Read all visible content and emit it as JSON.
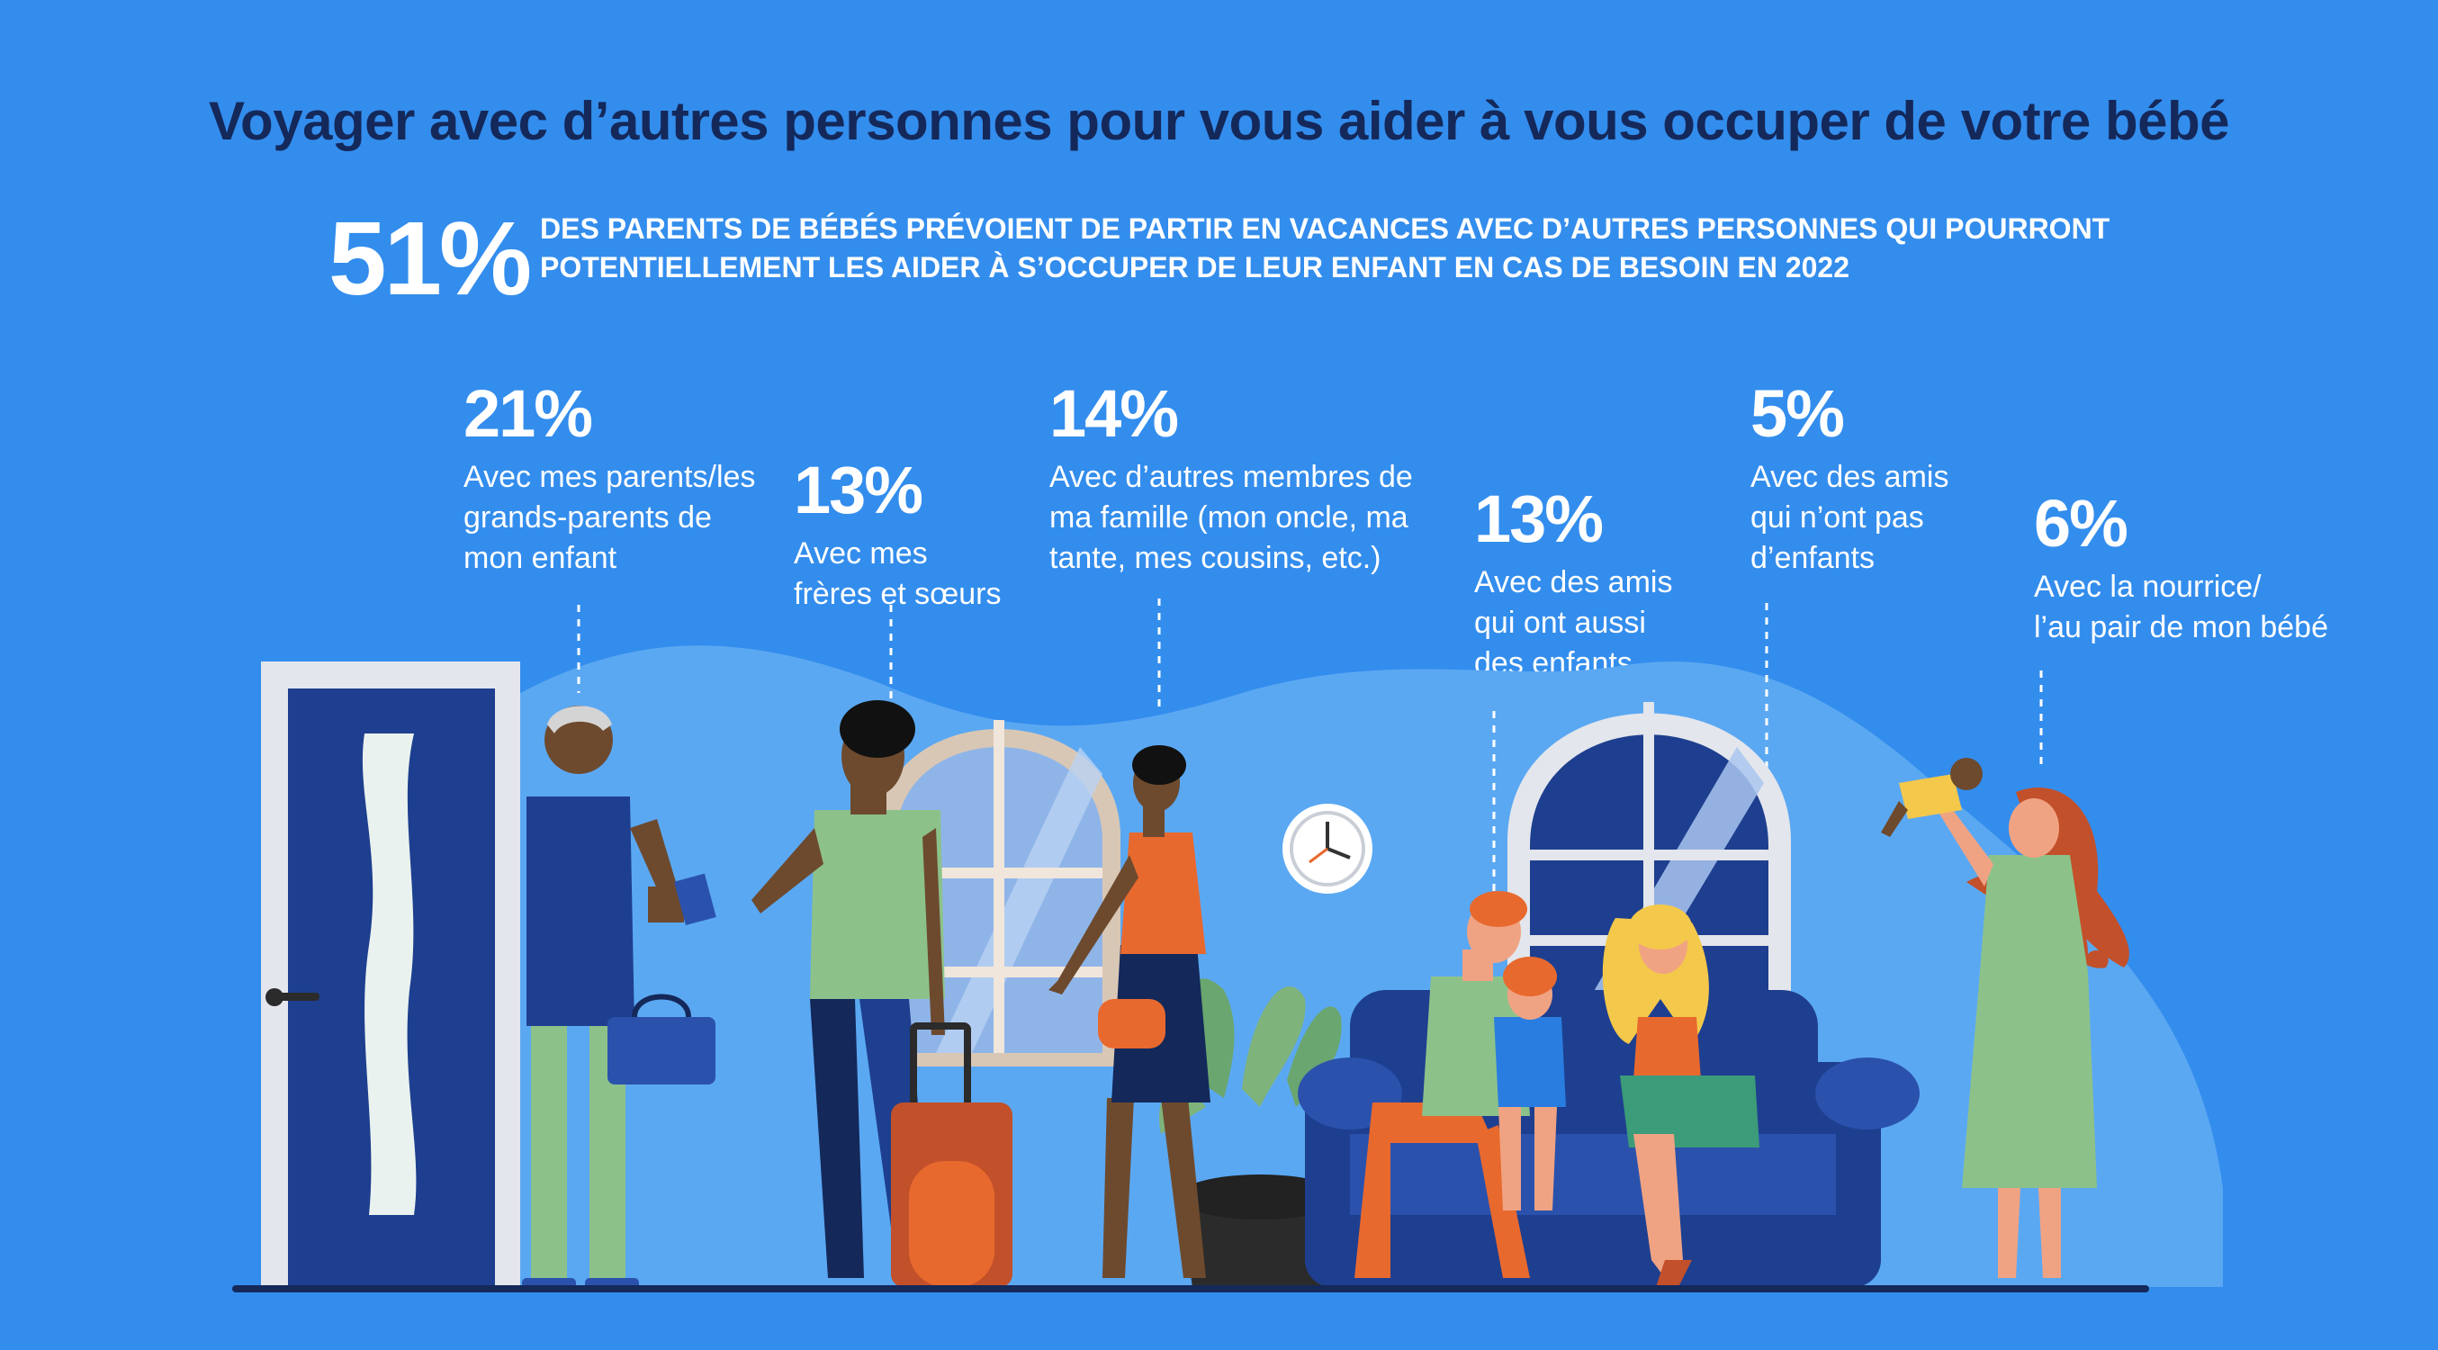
{
  "title": "Voyager avec d’autres personnes pour vous aider à vous occuper de votre bébé",
  "headline": {
    "percent": "51%",
    "text_line1": "DES PARENTS DE BÉBÉS PRÉVOIENT DE PARTIR EN VACANCES AVEC D’AUTRES PERSONNES QUI POURRONT",
    "text_line2": "POTENTIELLEMENT LES AIDER À S’OCCUPER DE LEUR ENFANT EN CAS DE BESOIN EN 2022"
  },
  "stats": [
    {
      "percent": "21%",
      "lines": [
        "Avec mes parents/les",
        "grands-parents de",
        "mon enfant"
      ]
    },
    {
      "percent": "13%",
      "lines": [
        "Avec mes",
        "frères et sœurs"
      ]
    },
    {
      "percent": "14%",
      "lines": [
        "Avec d’autres membres de",
        "ma famille (mon oncle, ma",
        "tante, mes cousins, etc.)"
      ]
    },
    {
      "percent": "13%",
      "lines": [
        "Avec des amis",
        "qui ont aussi",
        "des enfants"
      ]
    },
    {
      "percent": "5%",
      "lines": [
        "Avec des amis",
        "qui n’ont pas",
        "d’enfants"
      ]
    },
    {
      "percent": "6%",
      "lines": [
        "Avec la nourrice/",
        "l’au pair de mon bébé"
      ]
    }
  ],
  "colors": {
    "background": "#338ded",
    "title": "#14285a",
    "text": "#ffffff",
    "backdrop": "#5ba8f2",
    "navy": "#1e3f8f",
    "orange": "#e8692e",
    "green": "#8cc28a"
  }
}
